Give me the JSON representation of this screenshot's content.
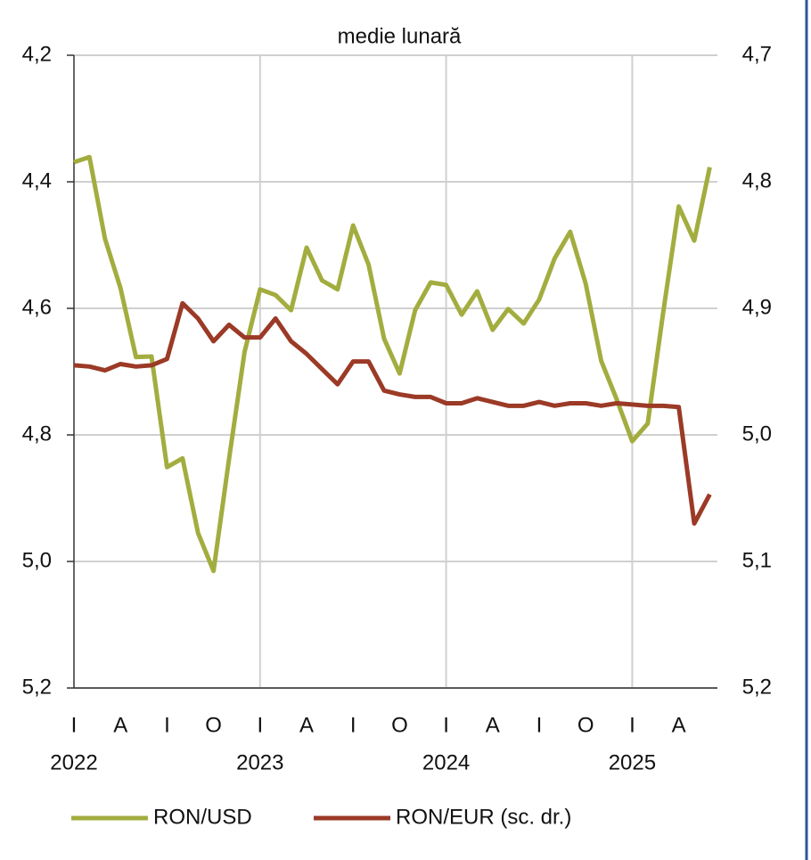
{
  "chart_data": {
    "type": "line",
    "title": "medie lunară",
    "categories": [
      "I",
      null,
      null,
      "A",
      null,
      null,
      "I",
      null,
      null,
      "O",
      null,
      null,
      "I",
      null,
      null,
      "A",
      null,
      null,
      "I",
      null,
      null,
      "O",
      null,
      null,
      "I",
      null,
      null,
      "A",
      null,
      null,
      "I",
      null,
      null,
      "O",
      null,
      null,
      "I",
      null,
      null,
      "A",
      null,
      null
    ],
    "year_labels": [
      "2022",
      "2023",
      "2024",
      "2025"
    ],
    "series": [
      {
        "name": "RON/USD",
        "color": "#a3ad3f",
        "axis": "y",
        "values": [
          4.369,
          4.361,
          4.49,
          4.568,
          4.677,
          4.676,
          4.851,
          4.837,
          4.955,
          5.015,
          4.838,
          4.669,
          4.57,
          4.579,
          4.603,
          4.504,
          4.556,
          4.57,
          4.469,
          4.531,
          4.648,
          4.703,
          4.603,
          4.559,
          4.563,
          4.61,
          4.573,
          4.634,
          4.601,
          4.624,
          4.586,
          4.521,
          4.479,
          4.561,
          4.683,
          4.744,
          4.81,
          4.782,
          4.606,
          4.439,
          4.493,
          4.377
        ]
      },
      {
        "name": "RON/EUR (sc. dr.)",
        "color": "#9b3a26",
        "axis": "y2",
        "values": [
          4.945,
          4.946,
          4.949,
          4.944,
          4.946,
          4.945,
          4.94,
          4.896,
          4.908,
          4.926,
          4.913,
          4.923,
          4.923,
          4.908,
          4.926,
          4.936,
          4.948,
          4.96,
          4.942,
          4.942,
          4.965,
          4.968,
          4.97,
          4.97,
          4.975,
          4.975,
          4.971,
          4.974,
          4.977,
          4.977,
          4.974,
          4.977,
          4.975,
          4.975,
          4.977,
          4.975,
          4.976,
          4.977,
          4.977,
          4.978,
          5.07,
          5.047
        ]
      }
    ],
    "ylim": [
      4.2,
      5.2
    ],
    "inverted": true,
    "yticks": [
      {
        "value": 4.2,
        "label": "4,2"
      },
      {
        "value": 4.4,
        "label": "4,4"
      },
      {
        "value": 4.6,
        "label": "4,6"
      },
      {
        "value": 4.8,
        "label": "4,8"
      },
      {
        "value": 5.0,
        "label": "5,0"
      },
      {
        "value": 5.2,
        "label": "5,2"
      }
    ],
    "y2lim": [
      4.7,
      5.2
    ],
    "y2ticks": [
      {
        "value": 4.7,
        "label": "4,7"
      },
      {
        "value": 4.8,
        "label": "4,8"
      },
      {
        "value": 4.9,
        "label": "4,9"
      },
      {
        "value": 5.0,
        "label": "5,0"
      },
      {
        "value": 5.1,
        "label": "5,1"
      },
      {
        "value": 5.2,
        "label": "5,2"
      }
    ],
    "grid": true
  }
}
